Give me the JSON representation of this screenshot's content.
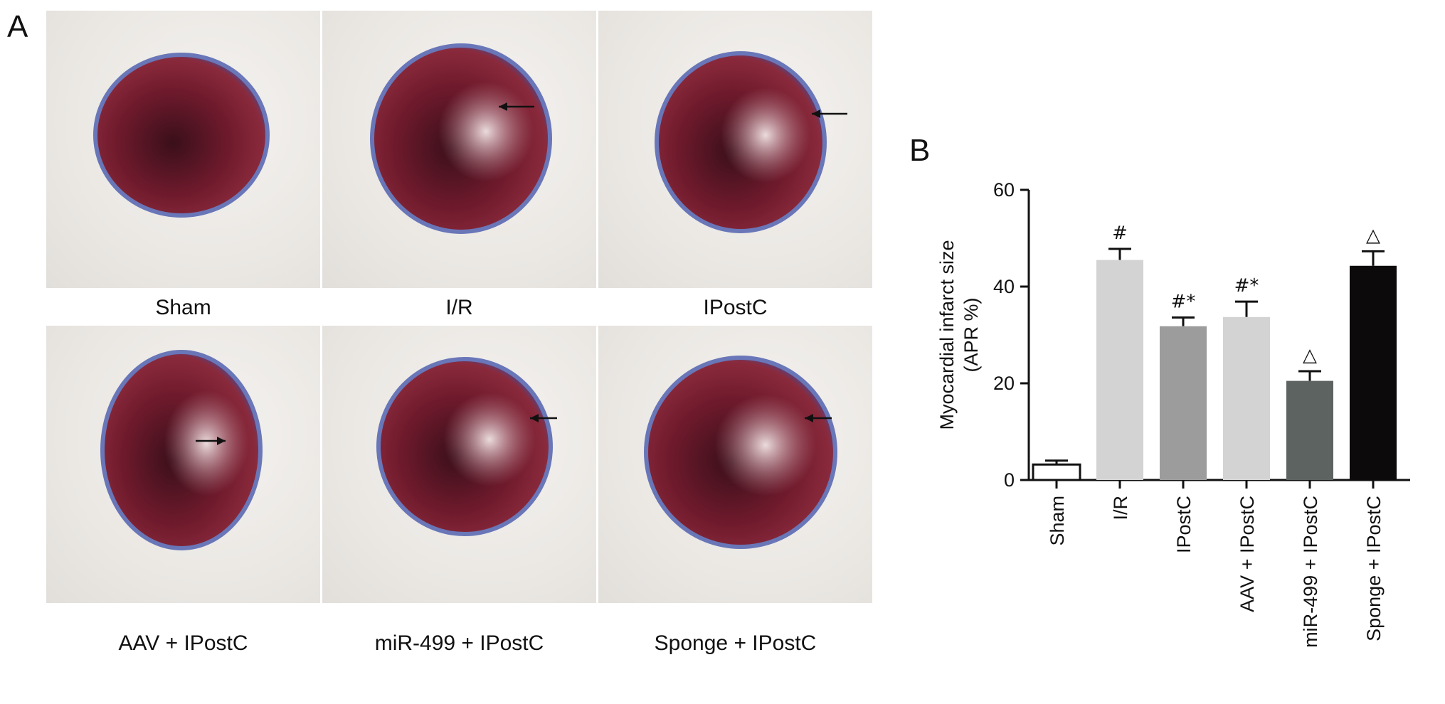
{
  "panel_a": {
    "letter": "A",
    "photos": [
      {
        "caption": "Sham",
        "arrow": false
      },
      {
        "caption": "I/R",
        "arrow": true
      },
      {
        "caption": "IPostC",
        "arrow": true
      },
      {
        "caption": "AAV + IPostC",
        "arrow": true
      },
      {
        "caption": "miR-499 + IPostC",
        "arrow": true
      },
      {
        "caption": "Sponge + IPostC",
        "arrow": true
      }
    ]
  },
  "panel_b": {
    "letter": "B"
  },
  "chart_data": {
    "type": "bar",
    "title": "",
    "ylabel_lines": [
      "Myocardial infarct size",
      "(APR %)"
    ],
    "xlabel": "",
    "categories": [
      "Sham",
      "I/R",
      "IPostC",
      "AAV + IPostC",
      "miR-499 + IPostC",
      "Sponge + IPostC"
    ],
    "values": [
      3.2,
      45.5,
      31.8,
      33.7,
      20.5,
      44.3
    ],
    "errors": [
      0.8,
      2.3,
      1.8,
      3.2,
      2.0,
      3.0
    ],
    "significance": [
      "",
      "#",
      "#*",
      "#*",
      "△",
      "△"
    ],
    "bar_colors": [
      "#ffffff",
      "#d3d3d3",
      "#9c9c9c",
      "#d3d3d3",
      "#5d6361",
      "#0d0a0b"
    ],
    "ylim": [
      0,
      60
    ],
    "yticks": [
      0,
      20,
      40,
      60
    ],
    "grid": false
  }
}
